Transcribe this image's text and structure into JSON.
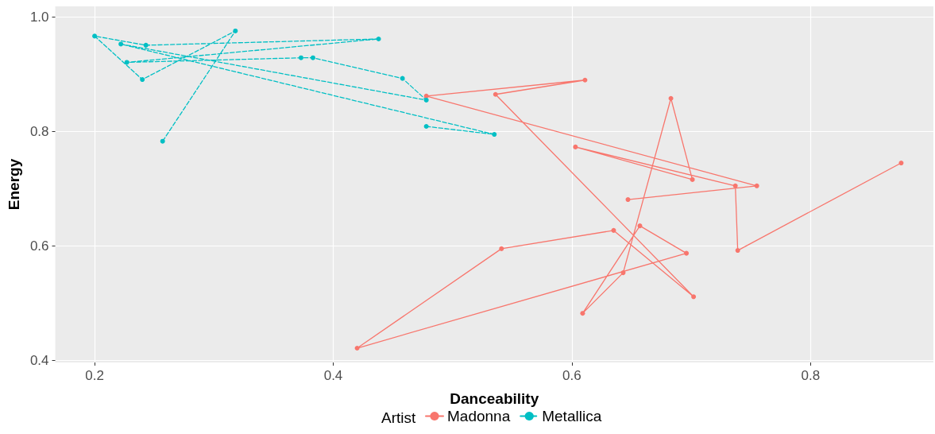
{
  "chart_data": {
    "type": "line",
    "xlabel": "Danceability",
    "ylabel": "Energy",
    "legend_title": "Artist",
    "legend": "bottom",
    "grid": true,
    "marker": "circle",
    "xlim": [
      0.167,
      0.903
    ],
    "ylim": [
      0.396,
      1.019
    ],
    "xticks": [
      0.2,
      0.4,
      0.6,
      0.8
    ],
    "yticks": [
      0.4,
      0.6,
      0.8,
      {
        "value": 1,
        "label": "1.0"
      }
    ],
    "series": [
      {
        "name": "Madonna",
        "color": "#f8766d",
        "line_style": "solid",
        "x": [
          0.876,
          0.739,
          0.737,
          0.603,
          0.701,
          0.683,
          0.643,
          0.609,
          0.657,
          0.696,
          0.42,
          0.541,
          0.635,
          0.702,
          0.536,
          0.611,
          0.478,
          0.755,
          0.647
        ],
        "values": [
          0.745,
          0.592,
          0.705,
          0.773,
          0.716,
          0.858,
          0.553,
          0.482,
          0.635,
          0.587,
          0.421,
          0.595,
          0.627,
          0.511,
          0.865,
          0.89,
          0.862,
          0.705,
          0.681
        ]
      },
      {
        "name": "Metallica",
        "color": "#00bfc4",
        "line_style": "dashed",
        "x": [
          0.478,
          0.535,
          0.222,
          0.478,
          0.458,
          0.383,
          0.373,
          0.227,
          0.438,
          0.243,
          0.2,
          0.24,
          0.318,
          0.257
        ],
        "values": [
          0.809,
          0.795,
          0.953,
          0.855,
          0.893,
          0.929,
          0.929,
          0.921,
          0.962,
          0.951,
          0.967,
          0.891,
          0.976,
          0.783
        ]
      }
    ]
  }
}
